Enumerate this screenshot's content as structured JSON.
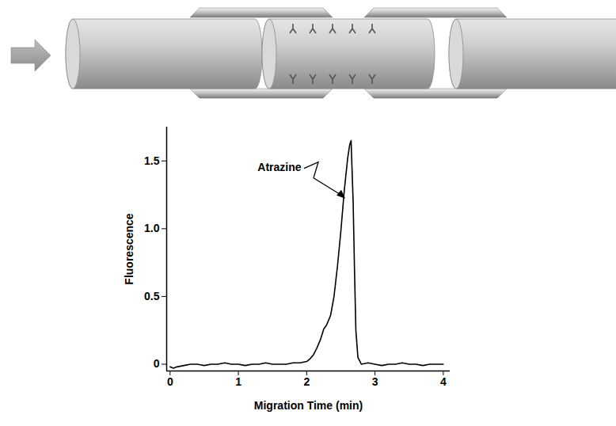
{
  "chart_data": {
    "type": "line",
    "x_label": "Migration Time (min)",
    "y_label": "Fluorescence",
    "xlim": [
      -0.05,
      4.1
    ],
    "xticks": [
      0,
      1,
      2,
      3,
      4
    ],
    "ylim": [
      -0.05,
      1.75
    ],
    "yticks": [
      0,
      0.5,
      {
        "value": 1,
        "label": "1.0"
      },
      1.5
    ],
    "grid": false,
    "color": "#000000",
    "x": [
      0,
      0.05,
      0.1,
      0.2,
      0.3,
      0.4,
      0.5,
      0.6,
      0.7,
      0.8,
      0.9,
      1.0,
      1.1,
      1.2,
      1.3,
      1.4,
      1.5,
      1.6,
      1.7,
      1.8,
      1.9,
      2.0,
      2.05,
      2.1,
      2.15,
      2.2,
      2.25,
      2.28,
      2.3,
      2.35,
      2.4,
      2.45,
      2.5,
      2.55,
      2.6,
      2.63,
      2.65,
      2.68,
      2.7,
      2.72,
      2.75,
      2.8,
      2.9,
      3.0,
      3.1,
      3.2,
      3.3,
      3.4,
      3.5,
      3.6,
      3.7,
      3.8,
      3.9,
      4.0
    ],
    "values": [
      -0.02,
      -0.03,
      -0.02,
      -0.01,
      0.0,
      0.0,
      -0.01,
      0.0,
      0.0,
      0.01,
      0.0,
      0.0,
      -0.01,
      0.0,
      0.0,
      0.01,
      0.0,
      0.0,
      0.0,
      0.01,
      0.01,
      0.02,
      0.04,
      0.07,
      0.12,
      0.18,
      0.26,
      0.28,
      0.3,
      0.36,
      0.5,
      0.72,
      0.98,
      1.28,
      1.52,
      1.62,
      1.65,
      1.2,
      0.7,
      0.25,
      0.05,
      0.0,
      0.01,
      0.0,
      -0.01,
      0.0,
      0.0,
      0.01,
      0.0,
      0.0,
      -0.01,
      0.0,
      0.0,
      0.0
    ],
    "annotations": [
      {
        "text": "Atrazine",
        "x": 2.57,
        "y": 1.22
      }
    ]
  }
}
